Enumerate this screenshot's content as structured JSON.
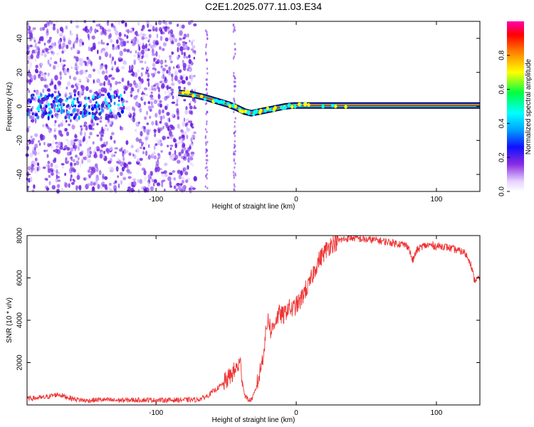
{
  "title": "C2E1.2025.077.11.03.E34",
  "chart_data": [
    {
      "type": "heatmap",
      "xlabel": "Height of straight line (km)",
      "ylabel": "Frequency (Hz)",
      "xlim": [
        -192,
        131
      ],
      "ylim": [
        -50,
        50
      ],
      "x_ticks": [
        -100,
        0,
        100
      ],
      "y_ticks": [
        -40,
        -20,
        0,
        20,
        40
      ],
      "colorbar": {
        "label": "Normalized spectral amplitude",
        "range": [
          0,
          1
        ],
        "ticks": [
          0.0,
          0.2,
          0.4,
          0.6,
          0.8
        ]
      },
      "ridge_line": {
        "x": [
          -84,
          -74,
          -64,
          -56,
          -48,
          -42,
          -37,
          -32,
          -26,
          -20,
          -14,
          -8,
          -2,
          4,
          10,
          40,
          80,
          131
        ],
        "y": [
          8,
          7,
          5,
          3,
          1,
          -1,
          -3,
          -4,
          -3,
          -2,
          -1,
          0,
          0.5,
          0.5,
          0.5,
          0.5,
          0.5,
          0.5
        ]
      },
      "noise_region": {
        "x": [
          -192,
          -72
        ],
        "y": [
          -50,
          50
        ]
      }
    },
    {
      "type": "line",
      "xlabel": "Height of straight line (km)",
      "ylabel": "SNR (10 * v/v)",
      "xlim": [
        -192,
        131
      ],
      "ylim": [
        0,
        8000
      ],
      "x_ticks": [
        -100,
        0,
        100
      ],
      "y_ticks": [
        2000,
        4000,
        6000,
        8000
      ],
      "color": "#ee3333",
      "series": [
        {
          "x": [
            -192,
            -180,
            -170,
            -160,
            -150,
            -140,
            -130,
            -120,
            -110,
            -100,
            -90,
            -80,
            -70,
            -64,
            -58,
            -52,
            -48,
            -44,
            -40,
            -37,
            -35,
            -33,
            -31,
            -29,
            -27,
            -24,
            -22,
            -20,
            -18,
            -15,
            -12,
            -9,
            -6,
            -3,
            0,
            3,
            6,
            9,
            12,
            15,
            18,
            21,
            25,
            30,
            35,
            40,
            45,
            50,
            55,
            60,
            65,
            70,
            75,
            80,
            83,
            86,
            90,
            95,
            100,
            105,
            110,
            115,
            120,
            124,
            127,
            131
          ],
          "y": [
            300,
            350,
            500,
            300,
            200,
            250,
            220,
            230,
            240,
            230,
            230,
            240,
            250,
            400,
            700,
            1000,
            1300,
            1600,
            2000,
            500,
            300,
            200,
            350,
            700,
            1200,
            2200,
            3200,
            4200,
            3400,
            4000,
            4300,
            4200,
            4600,
            4500,
            4700,
            4900,
            5400,
            5600,
            6200,
            6700,
            7000,
            7300,
            7600,
            7750,
            7850,
            7900,
            7850,
            7800,
            7800,
            7750,
            7700,
            7650,
            7600,
            7500,
            6800,
            7300,
            7500,
            7550,
            7500,
            7500,
            7400,
            7300,
            7200,
            6800,
            5900,
            6000
          ]
        }
      ]
    }
  ]
}
